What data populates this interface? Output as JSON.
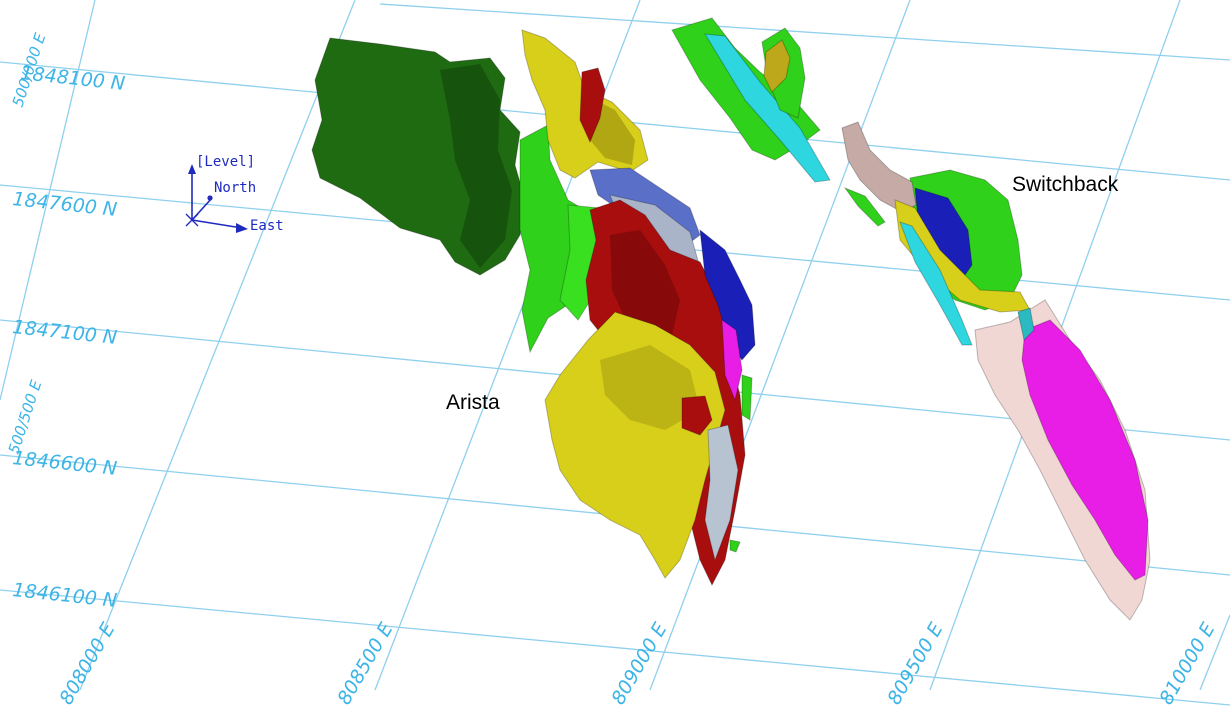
{
  "northing_labels": [
    "1848100 N",
    "1847600 N",
    "1847100 N",
    "1846600 N",
    "1846100 N"
  ],
  "easting_labels": [
    "808000 E",
    "808500 E",
    "809000 E",
    "809500 E",
    "810000 E"
  ],
  "elevation_labels": [
    "500/000 E",
    "500/500 E"
  ],
  "axis_triad": {
    "level": "[Level]",
    "north": "North",
    "east": "East"
  },
  "zones": {
    "arista": "Arista",
    "switchback": "Switchback"
  },
  "colors": {
    "dark_green": "#1f6b12",
    "green": "#2fd11a",
    "yellow": "#d8cf1a",
    "red": "#a90e0e",
    "blue": "#1a1fb8",
    "cyan": "#2ed6e0",
    "magenta": "#e81ee6",
    "pale_pink": "#f1d7d4",
    "mauve": "#c5aaa6",
    "grid": "#8fd0ee",
    "axis": "#1f2bbf"
  }
}
